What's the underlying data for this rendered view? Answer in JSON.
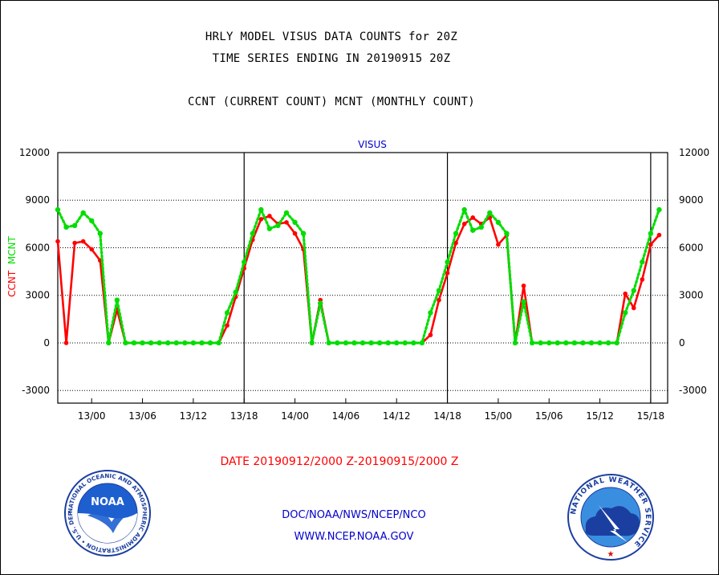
{
  "header": {
    "line1": "HRLY MODEL VISUS DATA COUNTS for 20Z",
    "line2": "TIME SERIES ENDING IN 20190915 20Z",
    "line3": "CCNT (CURRENT COUNT) MCNT (MONTHLY COUNT)"
  },
  "footer": {
    "date_range": "DATE 20190912/2000 Z-20190915/2000 Z",
    "org": "DOC/NOAA/NWS/NCEP/NCO",
    "url": "WWW.NCEP.NOAA.GOV"
  },
  "logos": {
    "noaa_text": "NOAA",
    "noaa_ring": "NATIONAL OCEANIC AND ATMOSPHERIC ADMINISTRATION • U.S. DEPARTMENT OF COMMERCE •",
    "nws_ring": "NATIONAL WEATHER SERVICE"
  },
  "colors": {
    "ccnt": "#ff0000",
    "mcnt": "#00dd00",
    "title_blue": "#0000cc",
    "date_red": "#ff0000"
  },
  "chart_data": {
    "type": "line",
    "title": "VISUS",
    "ylabel_parts": [
      "CCNT",
      "MCNT"
    ],
    "ylim": [
      -3800,
      12000
    ],
    "yticks": [
      12000,
      9000,
      6000,
      3000,
      0,
      -3000
    ],
    "xlim": [
      0,
      72
    ],
    "xtick_labels": [
      {
        "label": "13/00",
        "x": 4
      },
      {
        "label": "13/06",
        "x": 10
      },
      {
        "label": "13/12",
        "x": 16
      },
      {
        "label": "13/18",
        "x": 22
      },
      {
        "label": "14/00",
        "x": 28
      },
      {
        "label": "14/06",
        "x": 34
      },
      {
        "label": "14/12",
        "x": 40
      },
      {
        "label": "14/18",
        "x": 46
      },
      {
        "label": "15/00",
        "x": 52
      },
      {
        "label": "15/06",
        "x": 58
      },
      {
        "label": "15/12",
        "x": 64
      },
      {
        "label": "15/18",
        "x": 70
      }
    ],
    "vertical_markers": [
      22,
      46,
      70
    ],
    "grid": "horizontal dotted",
    "series": [
      {
        "name": "CCNT",
        "color": "#ff0000",
        "values": [
          6400,
          0,
          6300,
          6400,
          5900,
          5200,
          0,
          2100,
          0,
          0,
          0,
          0,
          0,
          0,
          0,
          0,
          0,
          0,
          0,
          0,
          1100,
          2900,
          4700,
          6500,
          7800,
          8000,
          7500,
          7600,
          6900,
          5900,
          0,
          2700,
          0,
          0,
          0,
          0,
          0,
          0,
          0,
          0,
          0,
          0,
          0,
          0,
          500,
          2700,
          4400,
          6300,
          7500,
          7900,
          7500,
          7900,
          6200,
          6800,
          0,
          3600,
          0,
          0,
          0,
          0,
          0,
          0,
          0,
          0,
          0,
          0,
          0,
          3100,
          2200,
          4000,
          6200,
          6800
        ]
      },
      {
        "name": "MCNT",
        "color": "#00dd00",
        "values": [
          8400,
          7300,
          7400,
          8200,
          7700,
          6900,
          0,
          2700,
          0,
          0,
          0,
          0,
          0,
          0,
          0,
          0,
          0,
          0,
          0,
          0,
          1900,
          3200,
          5100,
          6900,
          8400,
          7200,
          7400,
          8200,
          7600,
          6900,
          0,
          2500,
          0,
          0,
          0,
          0,
          0,
          0,
          0,
          0,
          0,
          0,
          0,
          0,
          1900,
          3300,
          5100,
          6900,
          8400,
          7100,
          7300,
          8200,
          7600,
          6900,
          0,
          2600,
          0,
          0,
          0,
          0,
          0,
          0,
          0,
          0,
          0,
          0,
          0,
          1900,
          3300,
          5100,
          6900,
          8400
        ]
      }
    ]
  }
}
